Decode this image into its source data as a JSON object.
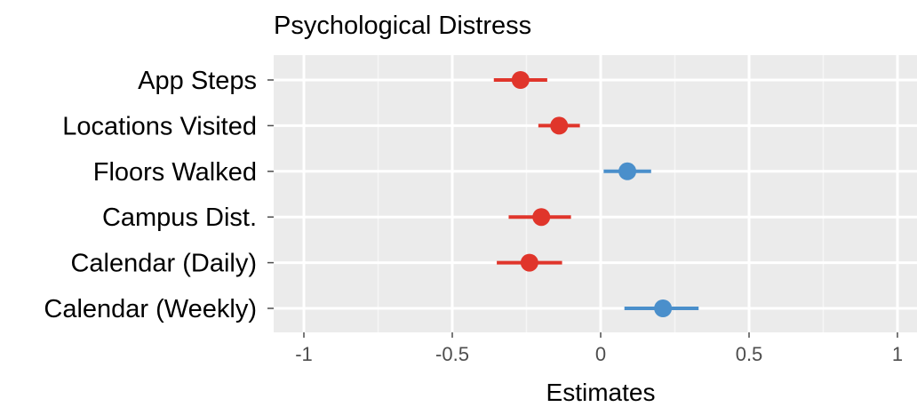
{
  "chart_data": {
    "type": "scatter",
    "title": "Psychological Distress",
    "xlabel": "Estimates",
    "ylabel": "",
    "xlim": [
      -1.1,
      1.05
    ],
    "xticks": [
      -1,
      -0.5,
      0,
      0.5,
      1
    ],
    "xtick_labels": [
      "-1",
      "-0.5",
      "0",
      "0.5",
      "1"
    ],
    "grid": true,
    "colors": {
      "negative": "#e0352b",
      "positive": "#4a8fcb"
    },
    "points": [
      {
        "label": "App Steps",
        "estimate": -0.27,
        "ci_low": -0.36,
        "ci_high": -0.18,
        "sign": "negative"
      },
      {
        "label": "Locations Visited",
        "estimate": -0.14,
        "ci_low": -0.21,
        "ci_high": -0.07,
        "sign": "negative"
      },
      {
        "label": "Floors Walked",
        "estimate": 0.09,
        "ci_low": 0.01,
        "ci_high": 0.17,
        "sign": "positive"
      },
      {
        "label": "Campus Dist.",
        "estimate": -0.2,
        "ci_low": -0.31,
        "ci_high": -0.1,
        "sign": "negative"
      },
      {
        "label": "Calendar (Daily)",
        "estimate": -0.24,
        "ci_low": -0.35,
        "ci_high": -0.13,
        "sign": "negative"
      },
      {
        "label": "Calendar (Weekly)",
        "estimate": 0.21,
        "ci_low": 0.08,
        "ci_high": 0.33,
        "sign": "positive"
      }
    ]
  }
}
